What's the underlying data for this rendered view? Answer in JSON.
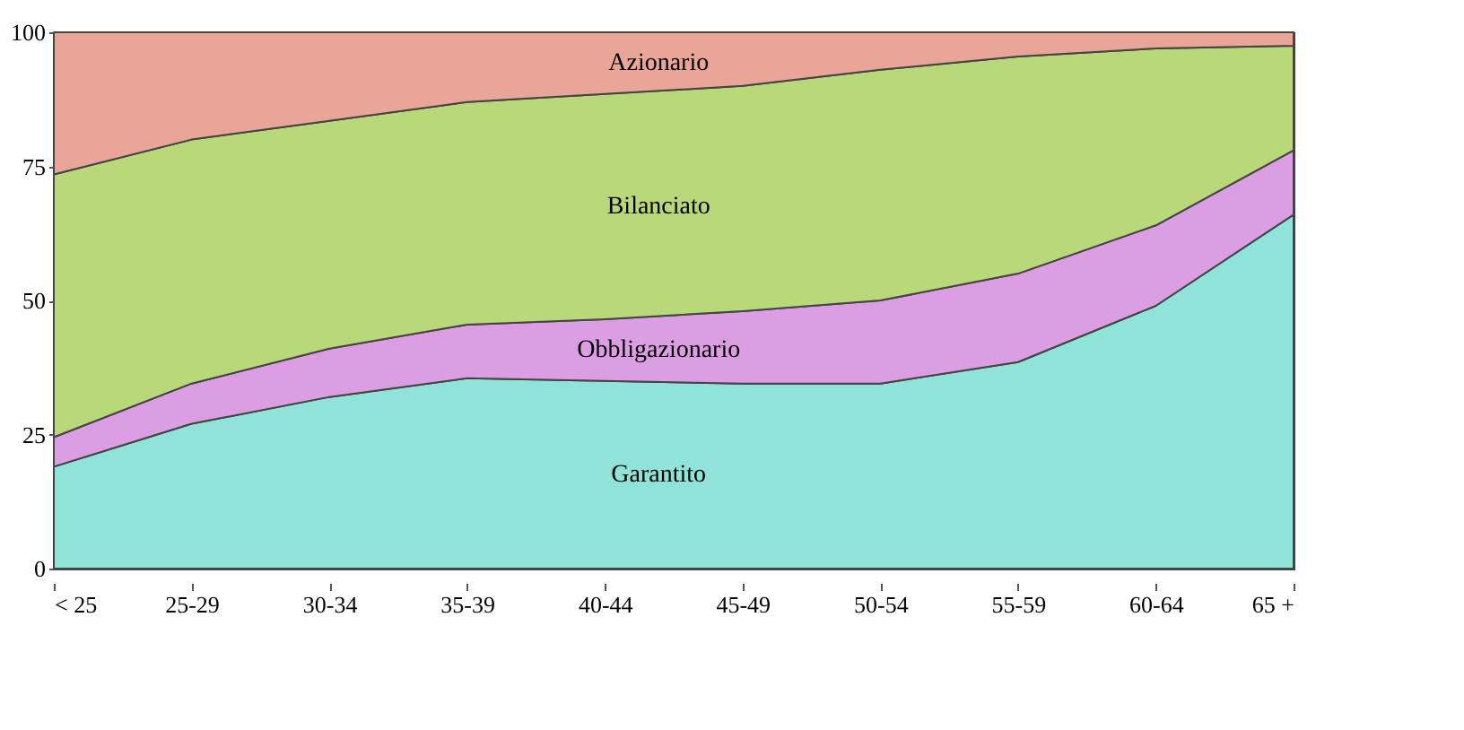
{
  "chart_data": {
    "type": "area",
    "stacked": true,
    "categories": [
      "< 25",
      "25-29",
      "30-34",
      "35-39",
      "40-44",
      "45-49",
      "50-54",
      "55-59",
      "60-64",
      "65 +"
    ],
    "series": [
      {
        "name": "Garantito",
        "color": "#8fe3d9",
        "values": [
          19,
          27,
          32,
          35.5,
          35,
          34.5,
          34.5,
          38.5,
          49,
          66
        ]
      },
      {
        "name": "Obbligazionario",
        "color": "#dc9ee3",
        "values": [
          5.5,
          7.5,
          9,
          10,
          11.5,
          13.5,
          15.5,
          16.5,
          15,
          12
        ]
      },
      {
        "name": "Bilanciato",
        "color": "#b8d87a",
        "values": [
          49,
          45.5,
          42.5,
          41.5,
          42,
          42,
          43,
          40.5,
          33,
          19.5
        ]
      },
      {
        "name": "Azionario",
        "color": "#e8a598",
        "values": [
          26.5,
          20,
          16.5,
          13,
          11.5,
          10,
          7,
          4.5,
          3,
          2.5
        ]
      }
    ],
    "ylim": [
      0,
      100
    ],
    "yticks": [
      0,
      25,
      50,
      75,
      100
    ],
    "grid": false,
    "legend": false
  }
}
